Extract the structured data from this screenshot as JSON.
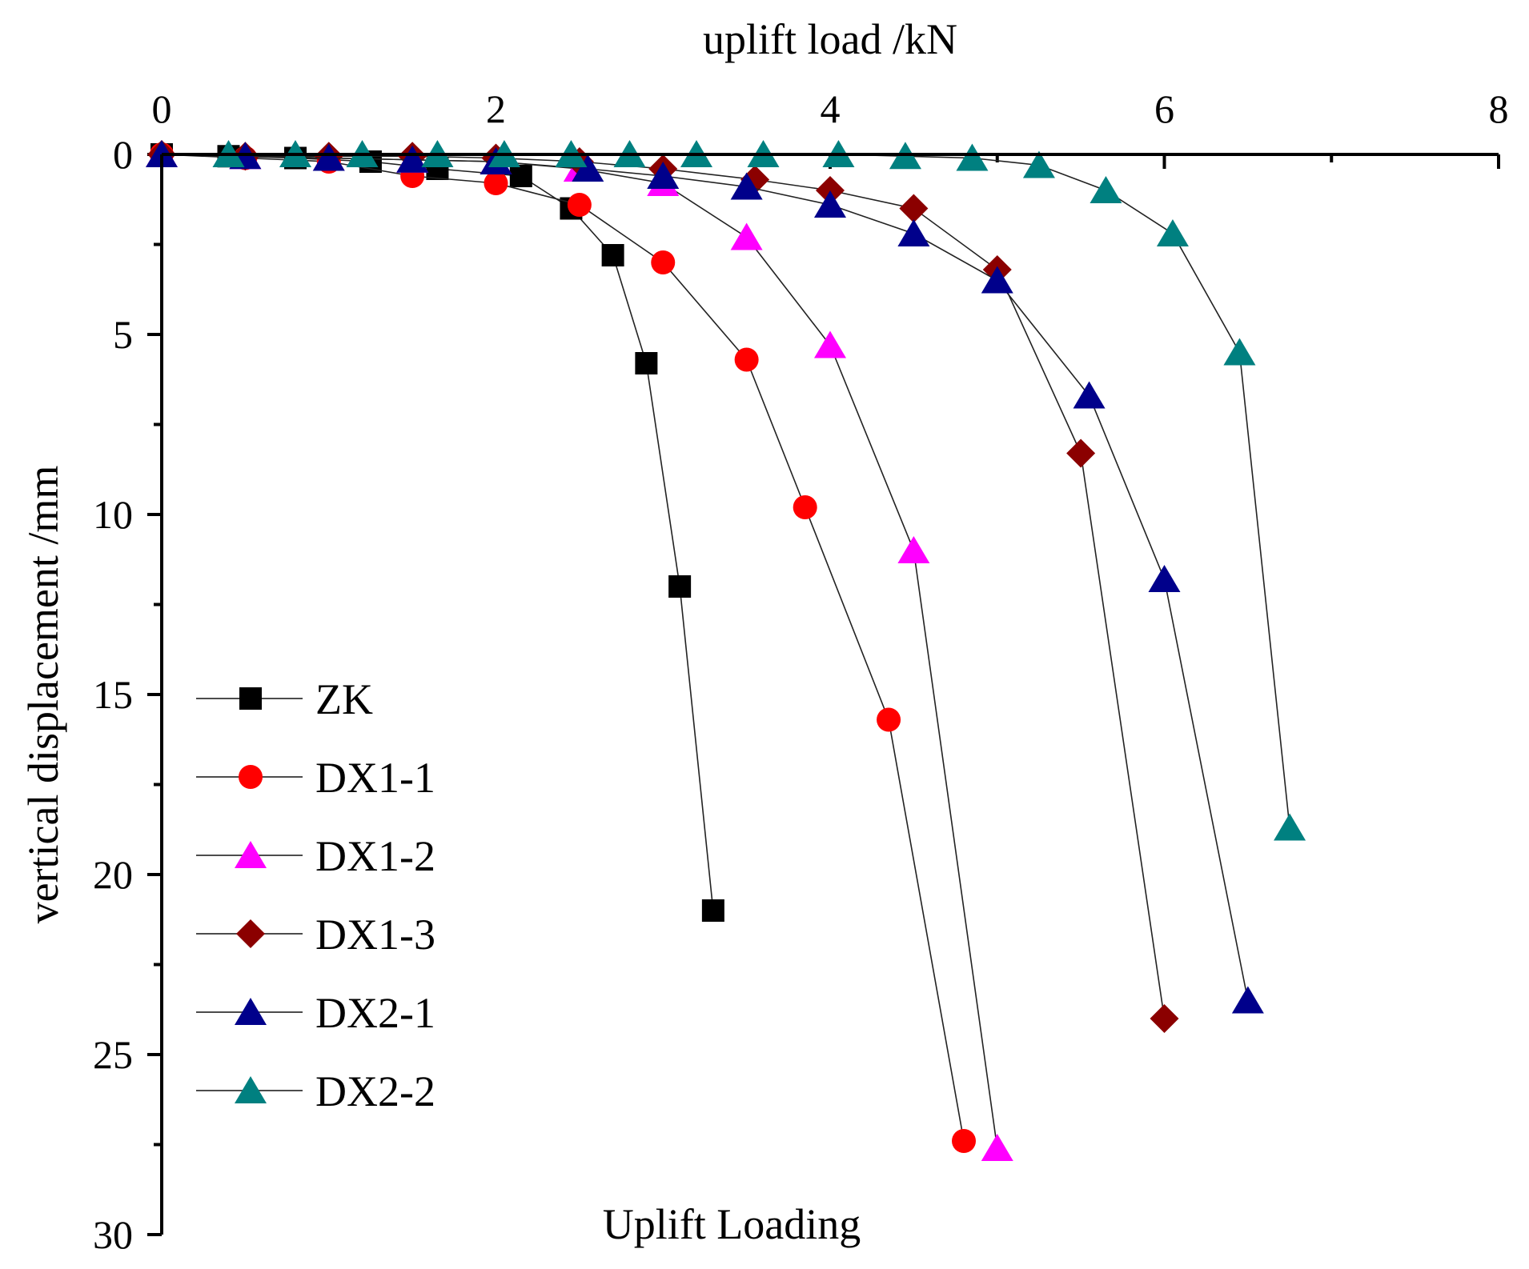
{
  "chart_data": {
    "type": "line",
    "title": "",
    "xlabel": "uplift load /kN",
    "ylabel": "vertical displacement /mm",
    "annotation": "Uplift Loading",
    "xlim": [
      0,
      8
    ],
    "ylim": [
      0,
      30
    ],
    "y_inverted": true,
    "x_axis_position": "top",
    "x_ticks": [
      "0",
      "2",
      "4",
      "6",
      "8"
    ],
    "y_ticks": [
      "0",
      "5",
      "10",
      "15",
      "20",
      "25",
      "30"
    ],
    "legend_position": "bottom-left",
    "series": [
      {
        "name": "ZK",
        "marker": "square",
        "color": "#000000",
        "x": [
          0,
          0.4,
          0.8,
          1.25,
          1.65,
          2.15,
          2.45,
          2.7,
          2.9,
          3.1,
          3.3
        ],
        "y": [
          0,
          0.05,
          0.1,
          0.2,
          0.4,
          0.6,
          1.5,
          2.8,
          5.8,
          12.0,
          21.0
        ]
      },
      {
        "name": "DX1-1",
        "marker": "circle",
        "color": "#ff0000",
        "x": [
          0,
          0.5,
          1.0,
          1.5,
          2.0,
          2.5,
          3.0,
          3.5,
          3.85,
          4.35,
          4.8
        ],
        "y": [
          0,
          0.1,
          0.2,
          0.6,
          0.8,
          1.4,
          3.0,
          5.7,
          9.8,
          15.7,
          27.4
        ]
      },
      {
        "name": "DX1-2",
        "marker": "triangle",
        "color": "#ff00ff",
        "x": [
          0,
          0.5,
          1.0,
          1.5,
          2.0,
          2.5,
          3.0,
          3.5,
          4.0,
          4.5,
          5.0
        ],
        "y": [
          0,
          0.05,
          0.1,
          0.15,
          0.2,
          0.4,
          0.8,
          2.3,
          5.3,
          11.0,
          27.6
        ]
      },
      {
        "name": "DX1-3",
        "marker": "diamond",
        "color": "#8b0000",
        "x": [
          0,
          0.5,
          1.0,
          1.5,
          2.0,
          2.5,
          3.0,
          3.55,
          4.0,
          4.5,
          5.0,
          5.5,
          6.0
        ],
        "y": [
          0,
          0.05,
          0.05,
          0.05,
          0.1,
          0.2,
          0.4,
          0.7,
          1.0,
          1.5,
          3.2,
          8.3,
          24.0
        ]
      },
      {
        "name": "DX2-1",
        "marker": "triangle",
        "color": "#00008b",
        "x": [
          0,
          0.5,
          1.0,
          1.5,
          2.0,
          2.55,
          3.0,
          3.5,
          4.0,
          4.5,
          5.0,
          5.55,
          6.0,
          6.5
        ],
        "y": [
          0,
          0.05,
          0.1,
          0.15,
          0.2,
          0.4,
          0.6,
          0.9,
          1.4,
          2.2,
          3.5,
          6.7,
          11.8,
          23.5
        ]
      },
      {
        "name": "DX2-2",
        "marker": "triangle",
        "color": "#008080",
        "x": [
          0.4,
          0.8,
          1.2,
          1.65,
          2.05,
          2.45,
          2.8,
          3.2,
          3.6,
          4.05,
          4.45,
          4.85,
          5.25,
          5.65,
          6.05,
          6.45,
          6.75
        ],
        "y": [
          0,
          0,
          0,
          0,
          0,
          0,
          0,
          0,
          0,
          0,
          0.05,
          0.1,
          0.3,
          1.0,
          2.2,
          5.5,
          18.7
        ]
      }
    ]
  }
}
